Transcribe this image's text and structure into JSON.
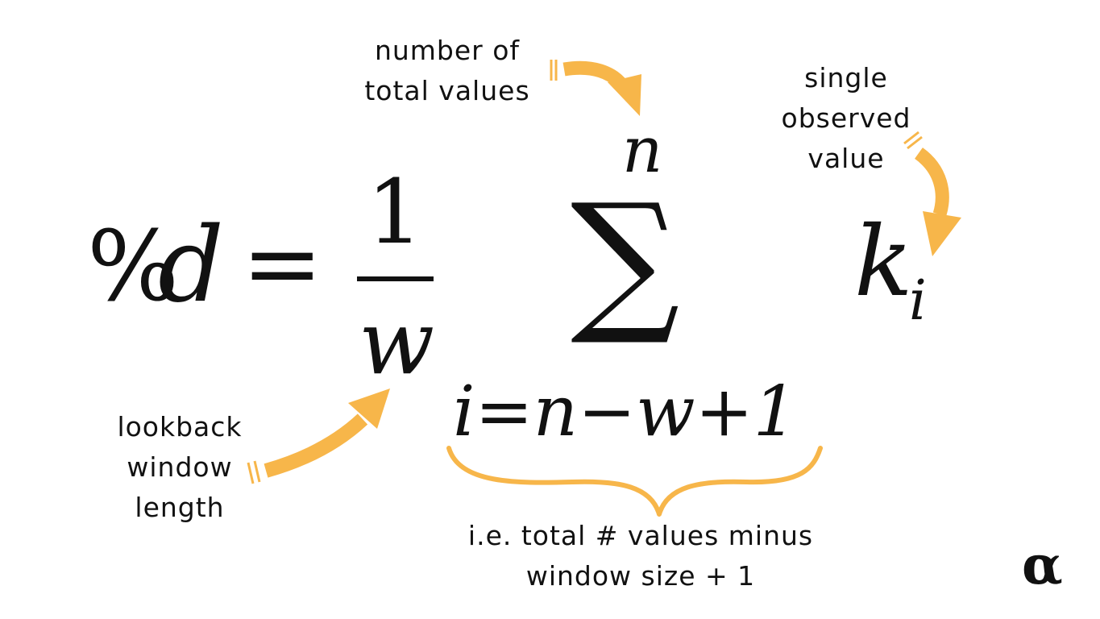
{
  "formula": {
    "lhs_percent": "%",
    "lhs_var": "d",
    "equals": "=",
    "numerator": "1",
    "denominator": "w",
    "sum_symbol": "∑",
    "upper_limit": "n",
    "lower_limit": "i=n−w+1",
    "term_base": "k",
    "term_subscript": "i"
  },
  "annotations": {
    "total_values": [
      "number of",
      "total values"
    ],
    "single_value": [
      "single",
      "observed",
      "value"
    ],
    "window_length": [
      "lookback",
      "window",
      "length"
    ],
    "lower_limit_note": [
      "i.e. total # values minus",
      "window size + 1"
    ]
  },
  "logo": "α",
  "colors": {
    "accent": "#F7B64A",
    "text": "#111111",
    "background": "#FFFFFF"
  }
}
